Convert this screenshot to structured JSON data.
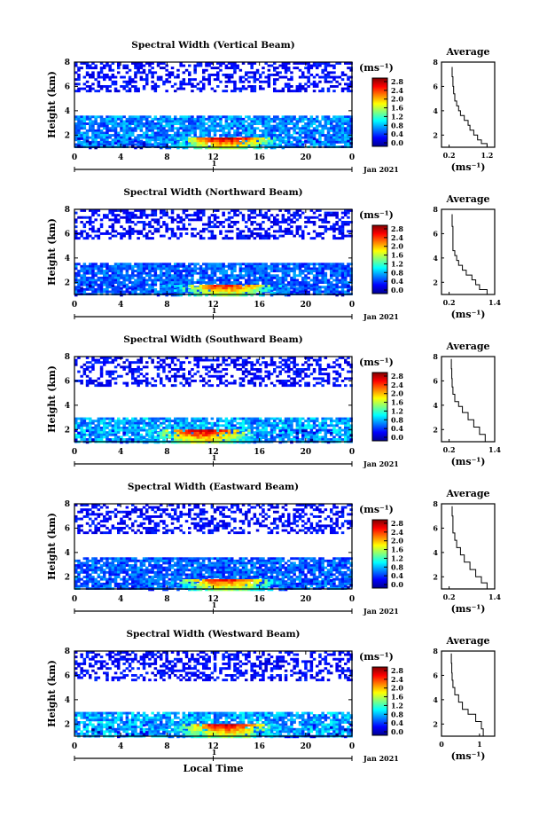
{
  "chart_data": [
    {
      "type": "heatmap",
      "title": "Spectral Width (Vertical Beam)",
      "ylabel": "Height (km)",
      "xticks": [
        "0",
        "4",
        "8",
        "12",
        "16",
        "20",
        "0"
      ],
      "yticks": [
        "2",
        "4",
        "6",
        "8"
      ],
      "xlim": [
        0,
        24
      ],
      "ylim": [
        1,
        8
      ],
      "date_marker": "1",
      "date_label": "Jan 2021",
      "colorbar": {
        "unit": "(ms⁻¹)",
        "ticks": [
          "2.8",
          "2.4",
          "2.0",
          "1.6",
          "1.2",
          "0.8",
          "0.4",
          "0.0"
        ],
        "range": [
          0,
          2.8
        ]
      },
      "profile": {
        "title": "Average",
        "xlabel": "(ms⁻¹)",
        "xticks": [
          "0.2",
          "1.2"
        ],
        "xlim": [
          0.0,
          1.4
        ],
        "yticks": [
          "2",
          "4",
          "6",
          "8"
        ],
        "ylim": [
          1,
          8
        ],
        "x": [
          1.25,
          1.2,
          1.05,
          0.95,
          0.85,
          0.75,
          0.7,
          0.6,
          0.5,
          0.45,
          0.4,
          0.35,
          0.32,
          0.3,
          0.28
        ],
        "y": [
          1.0,
          1.3,
          1.6,
          2.0,
          2.4,
          2.8,
          3.2,
          3.6,
          4.0,
          4.4,
          4.8,
          5.4,
          6.0,
          6.8,
          7.6
        ]
      },
      "layers": [
        {
          "range": [
            1.0,
            3.6
          ],
          "level": 0.7
        },
        {
          "range": [
            5.6,
            8.0
          ],
          "level": 0.35
        },
        {
          "range": [
            1.0,
            1.8
          ],
          "peak": 2.4,
          "center": 13
        }
      ]
    },
    {
      "type": "heatmap",
      "title": "Spectral Width (Northward Beam)",
      "ylabel": "Height (km)",
      "xticks": [
        "0",
        "4",
        "8",
        "12",
        "16",
        "20",
        "0"
      ],
      "yticks": [
        "2",
        "4",
        "6",
        "8"
      ],
      "xlim": [
        0,
        24
      ],
      "ylim": [
        1,
        8
      ],
      "date_marker": "1",
      "date_label": "Jan 2021",
      "colorbar": {
        "unit": "(ms⁻¹)",
        "ticks": [
          "2.8",
          "2.4",
          "2.0",
          "1.6",
          "1.2",
          "0.8",
          "0.4",
          "0.0"
        ],
        "range": [
          0,
          2.8
        ]
      },
      "profile": {
        "title": "Average",
        "xlabel": "(ms⁻¹)",
        "xticks": [
          "0.2",
          "1.4"
        ],
        "xlim": [
          0.0,
          1.4
        ],
        "yticks": [
          "2",
          "4",
          "6",
          "8"
        ],
        "ylim": [
          1,
          8
        ],
        "x": [
          1.35,
          1.2,
          1.0,
          0.9,
          0.8,
          0.65,
          0.55,
          0.45,
          0.4,
          0.35,
          0.3,
          0.3,
          0.3,
          0.28
        ],
        "y": [
          1.0,
          1.4,
          1.8,
          2.2,
          2.6,
          3.0,
          3.4,
          3.8,
          4.2,
          4.6,
          5.0,
          5.8,
          6.6,
          7.6
        ]
      },
      "layers": [
        {
          "range": [
            1.0,
            3.6
          ],
          "level": 0.6
        },
        {
          "range": [
            5.6,
            8.0
          ],
          "level": 0.35
        },
        {
          "range": [
            1.0,
            1.8
          ],
          "peak": 2.2,
          "center": 13
        }
      ]
    },
    {
      "type": "heatmap",
      "title": "Spectral Width (Southward Beam)",
      "ylabel": "Height (km)",
      "xticks": [
        "0",
        "4",
        "8",
        "12",
        "16",
        "20",
        "0"
      ],
      "yticks": [
        "2",
        "4",
        "6",
        "8"
      ],
      "xlim": [
        0,
        24
      ],
      "ylim": [
        1,
        8
      ],
      "date_marker": "1",
      "date_label": "Jan 2021",
      "colorbar": {
        "unit": "(ms⁻¹)",
        "ticks": [
          "2.8",
          "2.4",
          "2.0",
          "1.6",
          "1.2",
          "0.8",
          "0.4",
          "0.0"
        ],
        "range": [
          0,
          2.8
        ]
      },
      "profile": {
        "title": "Average",
        "xlabel": "(ms⁻¹)",
        "xticks": [
          "0.2",
          "1.4"
        ],
        "xlim": [
          0.0,
          1.4
        ],
        "yticks": [
          "2",
          "4",
          "6",
          "8"
        ],
        "ylim": [
          1,
          8
        ],
        "x": [
          1.3,
          1.15,
          1.0,
          0.85,
          0.7,
          0.55,
          0.45,
          0.35,
          0.3,
          0.28,
          0.27,
          0.26
        ],
        "y": [
          1.0,
          1.6,
          2.2,
          2.8,
          3.4,
          3.9,
          4.3,
          4.9,
          5.5,
          6.2,
          7.0,
          7.8
        ]
      },
      "layers": [
        {
          "range": [
            1.0,
            3.0
          ],
          "level": 0.8
        },
        {
          "range": [
            5.6,
            8.0
          ],
          "level": 0.35
        },
        {
          "range": [
            1.0,
            2.0
          ],
          "peak": 2.4,
          "center": 11
        }
      ]
    },
    {
      "type": "heatmap",
      "title": "Spectral Width (Eastward Beam)",
      "ylabel": "Height (km)",
      "xticks": [
        "0",
        "4",
        "8",
        "12",
        "16",
        "20",
        "0"
      ],
      "yticks": [
        "2",
        "4",
        "6",
        "8"
      ],
      "xlim": [
        0,
        24
      ],
      "ylim": [
        1,
        8
      ],
      "date_marker": "1",
      "date_label": "Jan 2021",
      "colorbar": {
        "unit": "(ms⁻¹)",
        "ticks": [
          "2.8",
          "2.4",
          "2.0",
          "1.6",
          "1.2",
          "0.8",
          "0.4",
          "0.0"
        ],
        "range": [
          0,
          2.8
        ]
      },
      "profile": {
        "title": "Average",
        "xlabel": "(ms⁻¹)",
        "xticks": [
          "0.2",
          "1.4"
        ],
        "xlim": [
          0.0,
          1.4
        ],
        "yticks": [
          "2",
          "4",
          "6",
          "8"
        ],
        "ylim": [
          1,
          8
        ],
        "x": [
          1.35,
          1.2,
          1.05,
          0.9,
          0.75,
          0.6,
          0.5,
          0.4,
          0.35,
          0.3,
          0.3,
          0.28
        ],
        "y": [
          1.0,
          1.5,
          2.0,
          2.6,
          3.2,
          3.8,
          4.4,
          5.0,
          5.6,
          6.2,
          7.0,
          7.8
        ]
      },
      "layers": [
        {
          "range": [
            1.0,
            3.6
          ],
          "level": 0.6
        },
        {
          "range": [
            5.6,
            8.0
          ],
          "level": 0.35
        },
        {
          "range": [
            1.0,
            1.8
          ],
          "peak": 2.2,
          "center": 13
        }
      ]
    },
    {
      "type": "heatmap",
      "title": "Spectral Width (Westward Beam)",
      "ylabel": "Height (km)",
      "xticks": [
        "0",
        "4",
        "8",
        "12",
        "16",
        "20",
        "0"
      ],
      "yticks": [
        "2",
        "4",
        "6",
        "8"
      ],
      "xlim": [
        0,
        24
      ],
      "ylim": [
        1,
        8
      ],
      "date_marker": "1",
      "date_label": "Jan 2021",
      "xlabel": "Local Time",
      "colorbar": {
        "unit": "(ms⁻¹)",
        "ticks": [
          "2.8",
          "2.4",
          "2.0",
          "1.6",
          "1.2",
          "0.8",
          "0.4",
          "0.0"
        ],
        "range": [
          0,
          2.8
        ]
      },
      "profile": {
        "title": "Average",
        "xlabel": "(ms⁻¹)",
        "xticks": [
          "0",
          "1"
        ],
        "xlim": [
          0.0,
          1.4
        ],
        "yticks": [
          "2",
          "4",
          "6",
          "8"
        ],
        "ylim": [
          1,
          8
        ],
        "x": [
          1.3,
          1.1,
          1.05,
          0.9,
          0.7,
          0.55,
          0.45,
          0.35,
          0.3,
          0.28,
          0.27,
          0.26
        ],
        "y": [
          1.0,
          1.6,
          2.2,
          2.8,
          3.2,
          3.8,
          4.4,
          5.0,
          5.6,
          6.2,
          7.0,
          7.8
        ]
      },
      "layers": [
        {
          "range": [
            1.0,
            3.0
          ],
          "level": 0.8
        },
        {
          "range": [
            5.6,
            8.0
          ],
          "level": 0.35
        },
        {
          "range": [
            1.0,
            2.0
          ],
          "peak": 2.3,
          "center": 13
        }
      ]
    }
  ]
}
